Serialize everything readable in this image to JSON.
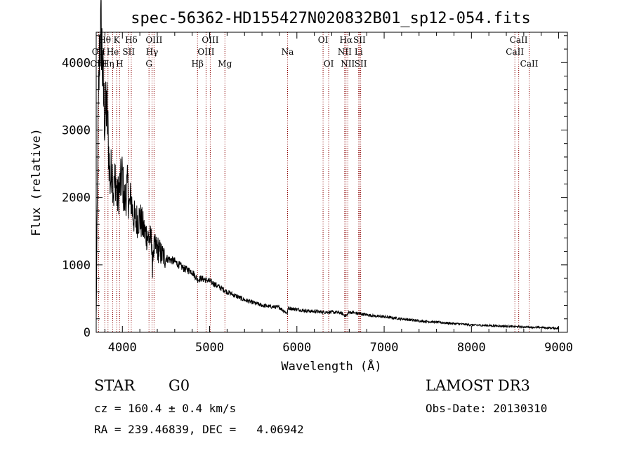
{
  "chart_data": {
    "type": "line",
    "title": "spec-56362-HD155427N020832B01_sp12-054.fits",
    "xlabel": "Wavelength (Å)",
    "ylabel": "Flux (relative)",
    "xlim": [
      3700,
      9100
    ],
    "ylim": [
      0,
      4450
    ],
    "xticks": [
      4000,
      5000,
      6000,
      7000,
      8000,
      9000
    ],
    "yticks": [
      0,
      1000,
      2000,
      3000,
      4000
    ],
    "series": [
      {
        "name": "flux",
        "x": [
          3700,
          3720,
          3740,
          3760,
          3780,
          3800,
          3820,
          3840,
          3860,
          3880,
          3900,
          3920,
          3940,
          3960,
          3980,
          4000,
          4020,
          4040,
          4060,
          4080,
          4100,
          4120,
          4150,
          4200,
          4250,
          4300,
          4340,
          4345,
          4350,
          4400,
          4450,
          4500,
          4600,
          4700,
          4800,
          4861,
          4900,
          5000,
          5100,
          5200,
          5300,
          5400,
          5500,
          5600,
          5700,
          5800,
          5890,
          5900,
          6000,
          6100,
          6200,
          6300,
          6400,
          6500,
          6563,
          6600,
          6700,
          6800,
          6900,
          7000,
          7200,
          7400,
          7600,
          7800,
          8000,
          8200,
          8400,
          8600,
          8800,
          9000
        ],
        "y": [
          200,
          2900,
          4300,
          4450,
          3600,
          3100,
          3400,
          2800,
          2200,
          2500,
          2050,
          2350,
          1950,
          2100,
          2200,
          2350,
          1900,
          2050,
          2150,
          1850,
          2000,
          1750,
          1650,
          1700,
          1500,
          1400,
          1350,
          700,
          1250,
          1250,
          1150,
          1100,
          1050,
          950,
          900,
          780,
          800,
          760,
          680,
          600,
          540,
          480,
          440,
          400,
          380,
          370,
          280,
          360,
          340,
          320,
          310,
          300,
          300,
          290,
          240,
          300,
          280,
          260,
          240,
          230,
          200,
          170,
          150,
          130,
          110,
          100,
          90,
          80,
          70,
          60
        ]
      }
    ],
    "spectral_lines": [
      {
        "label": "Hθ",
        "wavelength": 3798,
        "row": 0
      },
      {
        "label": "K",
        "wavelength": 3934,
        "row": 0
      },
      {
        "label": "Hδ",
        "wavelength": 4102,
        "row": 0
      },
      {
        "label": "OIII",
        "wavelength": 4363,
        "row": 0
      },
      {
        "label": "OIII",
        "wavelength": 5007,
        "row": 0
      },
      {
        "label": "OI",
        "wavelength": 6300,
        "row": 0
      },
      {
        "label": "Hα",
        "wavelength": 6563,
        "row": 0
      },
      {
        "label": "SII",
        "wavelength": 6717,
        "row": 0
      },
      {
        "label": "CaII",
        "wavelength": 8542,
        "row": 0
      },
      {
        "label": "OII",
        "wavelength": 3727,
        "row": 1
      },
      {
        "label": "He",
        "wavelength": 3889,
        "row": 1
      },
      {
        "label": "SII",
        "wavelength": 4072,
        "row": 1
      },
      {
        "label": "Hγ",
        "wavelength": 4340,
        "row": 1
      },
      {
        "label": "OIII",
        "wavelength": 4959,
        "row": 1
      },
      {
        "label": "Na",
        "wavelength": 5893,
        "row": 1
      },
      {
        "label": "NII",
        "wavelength": 6548,
        "row": 1
      },
      {
        "label": "Li",
        "wavelength": 6708,
        "row": 1
      },
      {
        "label": "CaII",
        "wavelength": 8498,
        "row": 1
      },
      {
        "label": "OIII",
        "wavelength": 3727,
        "row": 2
      },
      {
        "label": "Hη",
        "wavelength": 3835,
        "row": 2
      },
      {
        "label": "H",
        "wavelength": 3968,
        "row": 2
      },
      {
        "label": "G",
        "wavelength": 4305,
        "row": 2
      },
      {
        "label": "Hβ",
        "wavelength": 4861,
        "row": 2
      },
      {
        "label": "Mg",
        "wavelength": 5175,
        "row": 2
      },
      {
        "label": "OI",
        "wavelength": 6364,
        "row": 2
      },
      {
        "label": "NII",
        "wavelength": 6583,
        "row": 2
      },
      {
        "label": "SII",
        "wavelength": 6731,
        "row": 2
      },
      {
        "label": "CaII",
        "wavelength": 8662,
        "row": 2
      }
    ],
    "line_color": "#8b0000"
  },
  "info": {
    "class": "STAR",
    "subclass": "G0",
    "survey": "LAMOST DR3",
    "cz": "cz = 160.4 ± 0.4 km/s",
    "obs_date": "Obs-Date: 20130310",
    "radec": "RA = 239.46839, DEC =   4.06942"
  }
}
